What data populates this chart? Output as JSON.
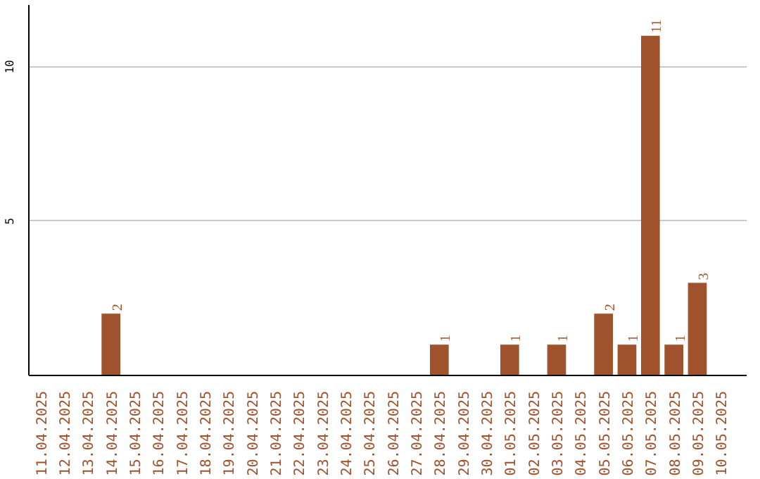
{
  "chart_data": {
    "type": "bar",
    "categories": [
      "11.04.2025",
      "12.04.2025",
      "13.04.2025",
      "14.04.2025",
      "15.04.2025",
      "16.04.2025",
      "17.04.2025",
      "18.04.2025",
      "19.04.2025",
      "20.04.2025",
      "21.04.2025",
      "22.04.2025",
      "23.04.2025",
      "24.04.2025",
      "25.04.2025",
      "26.04.2025",
      "27.04.2025",
      "28.04.2025",
      "29.04.2025",
      "30.04.2025",
      "01.05.2025",
      "02.05.2025",
      "03.05.2025",
      "04.05.2025",
      "05.05.2025",
      "06.05.2025",
      "07.05.2025",
      "08.05.2025",
      "09.05.2025",
      "10.05.2025"
    ],
    "values": [
      0,
      0,
      0,
      2,
      0,
      0,
      0,
      0,
      0,
      0,
      0,
      0,
      0,
      0,
      0,
      0,
      0,
      1,
      0,
      0,
      1,
      0,
      1,
      0,
      2,
      1,
      11,
      1,
      3,
      0
    ],
    "value_labels": [
      null,
      null,
      null,
      "2",
      null,
      null,
      null,
      null,
      null,
      null,
      null,
      null,
      null,
      null,
      null,
      null,
      null,
      "1",
      null,
      null,
      "1",
      null,
      "1",
      null,
      "2",
      "1",
      "11",
      "1",
      "3",
      null
    ],
    "color": "#a0522d",
    "ylim": [
      0,
      12
    ],
    "yticks": [
      5,
      10
    ],
    "grid": "y"
  }
}
